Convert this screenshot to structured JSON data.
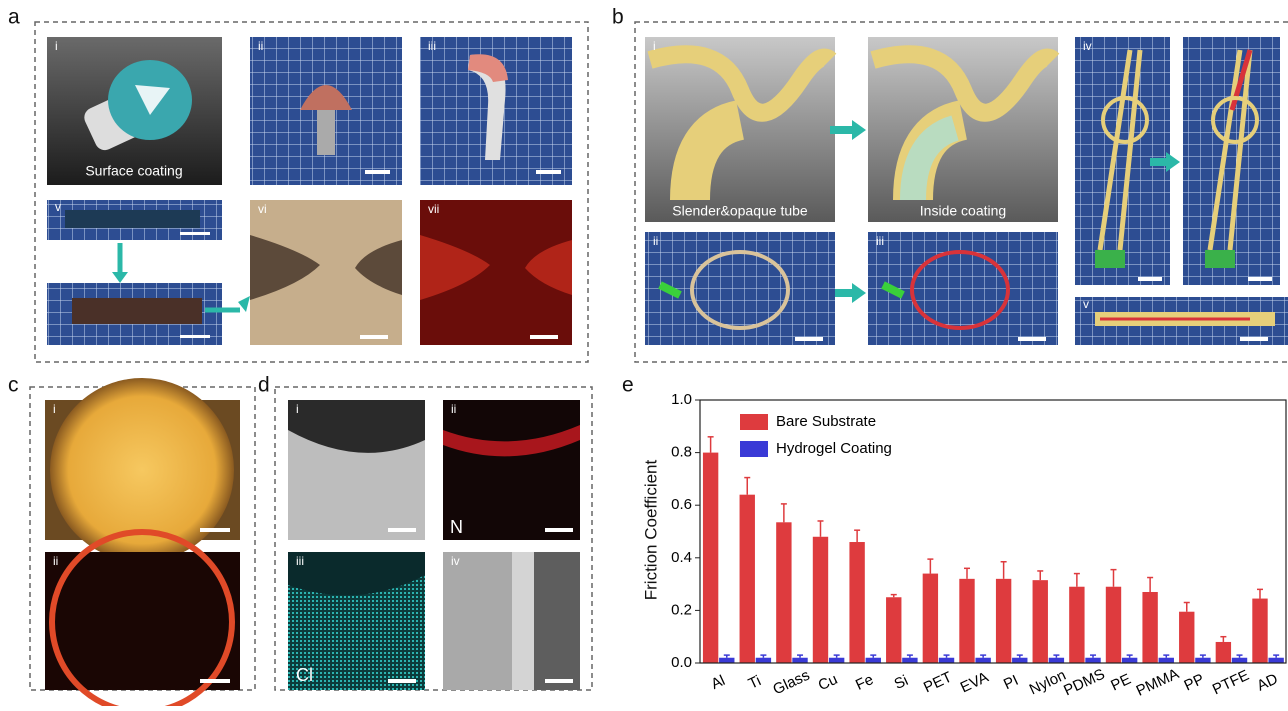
{
  "panel_a": {
    "letter": "a",
    "numerals": [
      "i",
      "ii",
      "iii",
      "v",
      "vi",
      "vii"
    ],
    "caption": "Surface coating"
  },
  "panel_b": {
    "letter": "b",
    "numerals": [
      "i",
      "ii",
      "iii",
      "iv",
      "v"
    ],
    "captions": [
      "Slender&opaque tube",
      "Inside coating"
    ]
  },
  "panel_c": {
    "letter": "c",
    "numerals": [
      "i",
      "ii"
    ]
  },
  "panel_d": {
    "letter": "d",
    "numerals": [
      "i",
      "ii",
      "iii",
      "iv"
    ],
    "elements": [
      "N",
      "Cl"
    ]
  },
  "panel_e": {
    "letter": "e"
  },
  "chart_data": {
    "type": "bar",
    "y_label": "Friction Coefficient",
    "categories": [
      "Al",
      "Ti",
      "Glass",
      "Cu",
      "Fe",
      "Si",
      "PET",
      "EVA",
      "PI",
      "Nylon",
      "PDMS",
      "PE",
      "PMMA",
      "PP",
      "PTFE",
      "AD"
    ],
    "series": [
      {
        "name": "Bare Substrate",
        "color": "#de3b3e",
        "values": [
          0.8,
          0.64,
          0.535,
          0.48,
          0.46,
          0.25,
          0.34,
          0.32,
          0.32,
          0.315,
          0.29,
          0.29,
          0.27,
          0.195,
          0.08,
          0.245
        ],
        "errors": [
          0.06,
          0.065,
          0.07,
          0.06,
          0.045,
          0.01,
          0.055,
          0.04,
          0.065,
          0.035,
          0.05,
          0.065,
          0.055,
          0.035,
          0.02,
          0.035
        ]
      },
      {
        "name": "Hydrogel Coating",
        "color": "#3a3ad6",
        "values": [
          0.02,
          0.02,
          0.02,
          0.02,
          0.02,
          0.02,
          0.02,
          0.02,
          0.02,
          0.02,
          0.02,
          0.02,
          0.02,
          0.02,
          0.02,
          0.02
        ],
        "errors": [
          0.01,
          0.01,
          0.01,
          0.01,
          0.01,
          0.01,
          0.01,
          0.01,
          0.01,
          0.01,
          0.01,
          0.01,
          0.01,
          0.01,
          0.01,
          0.01
        ]
      }
    ],
    "ylim": [
      0,
      1.0
    ],
    "yticks": [
      {
        "value": 0,
        "label": "0.0"
      },
      0.2,
      0.4,
      0.6,
      0.8,
      {
        "value": 1,
        "label": "1.0"
      }
    ]
  }
}
